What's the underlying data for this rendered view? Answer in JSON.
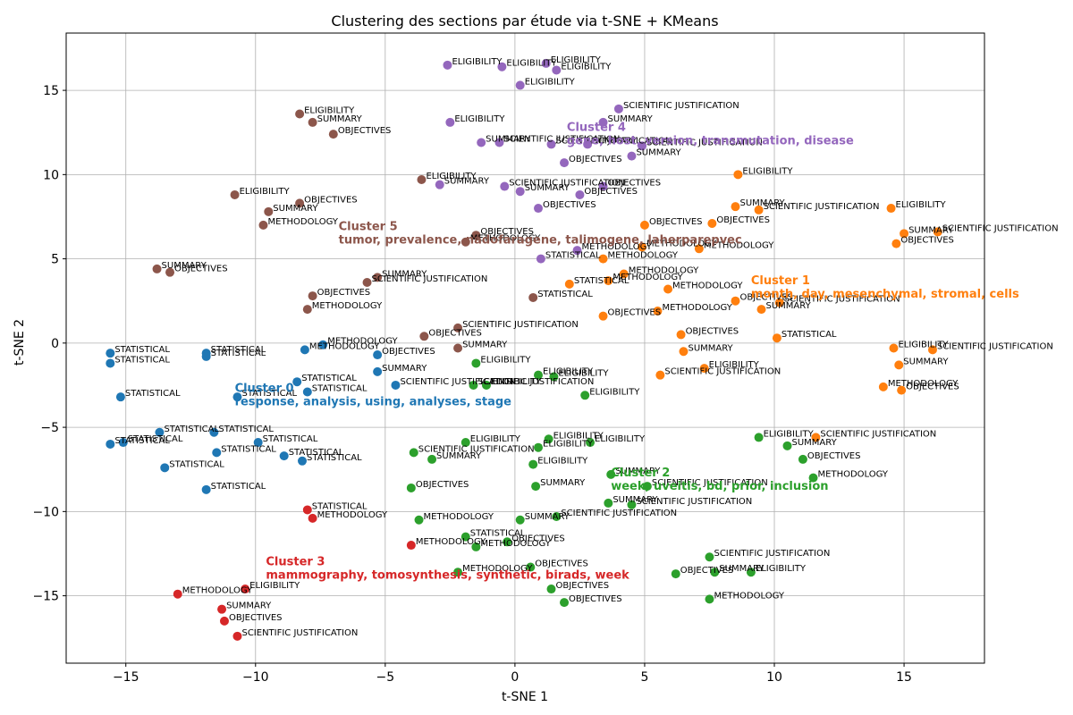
{
  "chart_data": {
    "type": "scatter",
    "title": "Clustering des sections par étude via t-SNE + KMeans",
    "xlabel": "t-SNE 1",
    "ylabel": "t-SNE 2",
    "xlim": [
      -17.3,
      18.1
    ],
    "ylim": [
      -19.0,
      18.4
    ],
    "xticks": [
      -15,
      -10,
      -5,
      0,
      5,
      10,
      15
    ],
    "yticks": [
      -15,
      -10,
      -5,
      0,
      5,
      10,
      15
    ],
    "grid": true,
    "colors": [
      "#1f77b4",
      "#ff7f0e",
      "#2ca02c",
      "#d62728",
      "#9467bd",
      "#8c564b"
    ],
    "clusters": [
      {
        "id": 0,
        "title": "Cluster 0",
        "keywords": "response, analysis, using, analyses, stage",
        "label_x": -10.8,
        "label_y": -2.9
      },
      {
        "id": 1,
        "title": "Cluster 1",
        "keywords": "month, day, mesenchymal, stromal, cells",
        "label_x": 9.1,
        "label_y": 3.5
      },
      {
        "id": 2,
        "title": "Cluster 2",
        "keywords": "week, uveitis, bd, prior, inclusion",
        "label_x": 3.7,
        "label_y": -7.9
      },
      {
        "id": 3,
        "title": "Cluster 3",
        "keywords": "mammography, tomosynthesis, synthetic, birads, week",
        "label_x": -9.6,
        "label_y": -13.2
      },
      {
        "id": 4,
        "title": "Cluster 4",
        "keywords": "gene, host, version, transmutation, disease",
        "label_x": 2.0,
        "label_y": 12.6
      },
      {
        "id": 5,
        "title": "Cluster 5",
        "keywords": "tumor, prevalence, nadofaragene, talimogene, laherparepvec",
        "label_x": -6.8,
        "label_y": 6.7
      }
    ],
    "points": [
      {
        "x": -15.6,
        "y": -0.6,
        "c": 0,
        "label": "STATISTICAL"
      },
      {
        "x": -15.6,
        "y": -1.2,
        "c": 0,
        "label": "STATISTICAL"
      },
      {
        "x": -11.9,
        "y": -0.6,
        "c": 0,
        "label": "STATISTICAL"
      },
      {
        "x": -11.9,
        "y": -0.8,
        "c": 0,
        "label": "STATISTICAL"
      },
      {
        "x": -15.2,
        "y": -3.2,
        "c": 0,
        "label": "STATISTICAL"
      },
      {
        "x": -10.7,
        "y": -3.2,
        "c": 0,
        "label": "STATISTICAL"
      },
      {
        "x": -13.7,
        "y": -5.3,
        "c": 0,
        "label": "STATISTICAL"
      },
      {
        "x": -11.6,
        "y": -5.3,
        "c": 0,
        "label": "STATISTICAL"
      },
      {
        "x": -15.6,
        "y": -6.0,
        "c": 0,
        "label": "STATISTICAL"
      },
      {
        "x": -15.1,
        "y": -5.9,
        "c": 0,
        "label": "STATISTICAL"
      },
      {
        "x": -9.9,
        "y": -5.9,
        "c": 0,
        "label": "STATISTICAL"
      },
      {
        "x": -11.5,
        "y": -6.5,
        "c": 0,
        "label": "STATISTICAL"
      },
      {
        "x": -13.5,
        "y": -7.4,
        "c": 0,
        "label": "STATISTICAL"
      },
      {
        "x": -8.9,
        "y": -6.7,
        "c": 0,
        "label": "STATISTICAL"
      },
      {
        "x": -8.2,
        "y": -7.0,
        "c": 0,
        "label": "STATISTICAL"
      },
      {
        "x": -11.9,
        "y": -8.7,
        "c": 0,
        "label": "STATISTICAL"
      },
      {
        "x": -8.4,
        "y": -2.3,
        "c": 0,
        "label": "STATISTICAL"
      },
      {
        "x": -8.0,
        "y": -2.9,
        "c": 0,
        "label": "STATISTICAL"
      },
      {
        "x": -8.1,
        "y": -0.4,
        "c": 0,
        "label": "METHODOLOGY"
      },
      {
        "x": -7.4,
        "y": -0.1,
        "c": 0,
        "label": "METHODOLOGY"
      },
      {
        "x": -5.3,
        "y": -0.7,
        "c": 0,
        "label": "OBJECTIVES"
      },
      {
        "x": -5.3,
        "y": -1.7,
        "c": 0,
        "label": "SUMMARY"
      },
      {
        "x": -4.6,
        "y": -2.5,
        "c": 0,
        "label": "SCIENTIFIC JUSTIFICATION"
      },
      {
        "x": 8.6,
        "y": 10.0,
        "c": 1,
        "label": "ELIGIBILITY"
      },
      {
        "x": 8.5,
        "y": 8.1,
        "c": 1,
        "label": "SUMMARY"
      },
      {
        "x": 9.4,
        "y": 7.9,
        "c": 1,
        "label": "SCIENTIFIC JUSTIFICATION"
      },
      {
        "x": 14.5,
        "y": 8.0,
        "c": 1,
        "label": "ELIGIBILITY"
      },
      {
        "x": 15.0,
        "y": 6.5,
        "c": 1,
        "label": "SUMMARY"
      },
      {
        "x": 16.3,
        "y": 6.6,
        "c": 1,
        "label": "SCIENTIFIC JUSTIFICATION"
      },
      {
        "x": 14.7,
        "y": 5.9,
        "c": 1,
        "label": "OBJECTIVES"
      },
      {
        "x": 5.0,
        "y": 7.0,
        "c": 1,
        "label": "OBJECTIVES"
      },
      {
        "x": 7.6,
        "y": 7.1,
        "c": 1,
        "label": "OBJECTIVES"
      },
      {
        "x": 4.9,
        "y": 5.7,
        "c": 1,
        "label": "METHODOLOGY"
      },
      {
        "x": 7.1,
        "y": 5.6,
        "c": 1,
        "label": "METHODOLOGY"
      },
      {
        "x": 3.4,
        "y": 5.0,
        "c": 1,
        "label": "METHODOLOGY"
      },
      {
        "x": 4.2,
        "y": 4.1,
        "c": 1,
        "label": "METHODOLOGY"
      },
      {
        "x": 3.6,
        "y": 3.7,
        "c": 1,
        "label": "METHODOLOGY"
      },
      {
        "x": 2.1,
        "y": 3.5,
        "c": 1,
        "label": "STATISTICAL"
      },
      {
        "x": 5.9,
        "y": 3.2,
        "c": 1,
        "label": "METHODOLOGY"
      },
      {
        "x": 8.5,
        "y": 2.5,
        "c": 1,
        "label": "OBJECTIVES"
      },
      {
        "x": 10.2,
        "y": 2.4,
        "c": 1,
        "label": "SCIENTIFIC JUSTIFICATION"
      },
      {
        "x": 9.5,
        "y": 2.0,
        "c": 1,
        "label": "SUMMARY"
      },
      {
        "x": 5.5,
        "y": 1.9,
        "c": 1,
        "label": "METHODOLOGY"
      },
      {
        "x": 3.4,
        "y": 1.6,
        "c": 1,
        "label": "OBJECTIVES"
      },
      {
        "x": 10.1,
        "y": 0.3,
        "c": 1,
        "label": "STATISTICAL"
      },
      {
        "x": 6.4,
        "y": 0.5,
        "c": 1,
        "label": "OBJECTIVES"
      },
      {
        "x": 6.5,
        "y": -0.5,
        "c": 1,
        "label": "SUMMARY"
      },
      {
        "x": 5.6,
        "y": -1.9,
        "c": 1,
        "label": "SCIENTIFIC JUSTIFICATION"
      },
      {
        "x": 7.3,
        "y": -1.5,
        "c": 1,
        "label": "ELIGIBILITY"
      },
      {
        "x": 14.6,
        "y": -0.3,
        "c": 1,
        "label": "ELIGIBILITY"
      },
      {
        "x": 16.1,
        "y": -0.4,
        "c": 1,
        "label": "SCIENTIFIC JUSTIFICATION"
      },
      {
        "x": 14.8,
        "y": -1.3,
        "c": 1,
        "label": "SUMMARY"
      },
      {
        "x": 14.2,
        "y": -2.6,
        "c": 1,
        "label": "METHODOLOGY"
      },
      {
        "x": 14.9,
        "y": -2.8,
        "c": 1,
        "label": "OBJECTIVES"
      },
      {
        "x": 11.6,
        "y": -5.6,
        "c": 1,
        "label": "SCIENTIFIC JUSTIFICATION"
      },
      {
        "x": -1.5,
        "y": -1.2,
        "c": 2,
        "label": "ELIGIBILITY"
      },
      {
        "x": 0.9,
        "y": -1.9,
        "c": 2,
        "label": "ELIGIBILITY"
      },
      {
        "x": 1.5,
        "y": -2.0,
        "c": 2,
        "label": "ELIGIBILITY"
      },
      {
        "x": -1.6,
        "y": -2.5,
        "c": 2,
        "label": "SCIENTIFIC JUSTIFICATION"
      },
      {
        "x": -1.1,
        "y": -2.5,
        "c": 2,
        "label": "ELIGIBILITY"
      },
      {
        "x": 2.7,
        "y": -3.1,
        "c": 2,
        "label": "ELIGIBILITY"
      },
      {
        "x": -1.9,
        "y": -5.9,
        "c": 2,
        "label": "ELIGIBILITY"
      },
      {
        "x": 1.3,
        "y": -5.7,
        "c": 2,
        "label": "ELIGIBILITY"
      },
      {
        "x": 2.9,
        "y": -5.9,
        "c": 2,
        "label": "ELIGIBILITY"
      },
      {
        "x": 0.9,
        "y": -6.2,
        "c": 2,
        "label": "ELIGIBILITY"
      },
      {
        "x": -3.9,
        "y": -6.5,
        "c": 2,
        "label": "SCIENTIFIC JUSTIFICATION"
      },
      {
        "x": -3.2,
        "y": -6.9,
        "c": 2,
        "label": "SUMMARY"
      },
      {
        "x": 0.7,
        "y": -7.2,
        "c": 2,
        "label": "ELIGIBILITY"
      },
      {
        "x": 3.7,
        "y": -7.8,
        "c": 2,
        "label": "SUMMARY"
      },
      {
        "x": 5.1,
        "y": -8.5,
        "c": 2,
        "label": "SCIENTIFIC JUSTIFICATION"
      },
      {
        "x": -4.0,
        "y": -8.6,
        "c": 2,
        "label": "OBJECTIVES"
      },
      {
        "x": 0.8,
        "y": -8.5,
        "c": 2,
        "label": "SUMMARY"
      },
      {
        "x": 3.6,
        "y": -9.5,
        "c": 2,
        "label": "SUMMARY"
      },
      {
        "x": 4.5,
        "y": -9.6,
        "c": 2,
        "label": "SCIENTIFIC JUSTIFICATION"
      },
      {
        "x": -3.7,
        "y": -10.5,
        "c": 2,
        "label": "METHODOLOGY"
      },
      {
        "x": 0.2,
        "y": -10.5,
        "c": 2,
        "label": "SUMMARY"
      },
      {
        "x": 1.6,
        "y": -10.3,
        "c": 2,
        "label": "SCIENTIFIC JUSTIFICATION"
      },
      {
        "x": -1.9,
        "y": -11.5,
        "c": 2,
        "label": "STATISTICAL"
      },
      {
        "x": -1.5,
        "y": -12.1,
        "c": 2,
        "label": "METHODOLOGY"
      },
      {
        "x": -0.3,
        "y": -11.8,
        "c": 2,
        "label": "OBJECTIVES"
      },
      {
        "x": -2.2,
        "y": -13.6,
        "c": 2,
        "label": "METHODOLOGY"
      },
      {
        "x": 0.6,
        "y": -13.3,
        "c": 2,
        "label": "OBJECTIVES"
      },
      {
        "x": 1.4,
        "y": -14.6,
        "c": 2,
        "label": "OBJECTIVES"
      },
      {
        "x": 1.9,
        "y": -15.4,
        "c": 2,
        "label": "OBJECTIVES"
      },
      {
        "x": 7.5,
        "y": -12.7,
        "c": 2,
        "label": "SCIENTIFIC JUSTIFICATION"
      },
      {
        "x": 6.2,
        "y": -13.7,
        "c": 2,
        "label": "OBJECTIVES"
      },
      {
        "x": 7.7,
        "y": -13.6,
        "c": 2,
        "label": "SUMMARY"
      },
      {
        "x": 9.1,
        "y": -13.6,
        "c": 2,
        "label": "ELIGIBILITY"
      },
      {
        "x": 7.5,
        "y": -15.2,
        "c": 2,
        "label": "METHODOLOGY"
      },
      {
        "x": 9.4,
        "y": -5.6,
        "c": 2,
        "label": "ELIGIBILITY"
      },
      {
        "x": 10.5,
        "y": -6.1,
        "c": 2,
        "label": "SUMMARY"
      },
      {
        "x": 11.1,
        "y": -6.9,
        "c": 2,
        "label": "OBJECTIVES"
      },
      {
        "x": 11.5,
        "y": -8.0,
        "c": 2,
        "label": "METHODOLOGY"
      },
      {
        "x": -8.0,
        "y": -9.9,
        "c": 3,
        "label": "STATISTICAL"
      },
      {
        "x": -7.8,
        "y": -10.4,
        "c": 3,
        "label": "METHODOLOGY"
      },
      {
        "x": -4.0,
        "y": -12.0,
        "c": 3,
        "label": "METHODOLOGY"
      },
      {
        "x": -13.0,
        "y": -14.9,
        "c": 3,
        "label": "METHODOLOGY"
      },
      {
        "x": -10.4,
        "y": -14.6,
        "c": 3,
        "label": "ELIGIBILITY"
      },
      {
        "x": -11.3,
        "y": -15.8,
        "c": 3,
        "label": "SUMMARY"
      },
      {
        "x": -11.2,
        "y": -16.5,
        "c": 3,
        "label": "OBJECTIVES"
      },
      {
        "x": -10.7,
        "y": -17.4,
        "c": 3,
        "label": "SCIENTIFIC JUSTIFICATION"
      },
      {
        "x": -2.6,
        "y": 16.5,
        "c": 4,
        "label": "ELIGIBILITY"
      },
      {
        "x": -0.5,
        "y": 16.4,
        "c": 4,
        "label": "ELIGIBILITY"
      },
      {
        "x": 1.2,
        "y": 16.6,
        "c": 4,
        "label": "ELIGIBILITY"
      },
      {
        "x": 1.6,
        "y": 16.2,
        "c": 4,
        "label": "ELIGIBILITY"
      },
      {
        "x": 0.2,
        "y": 15.3,
        "c": 4,
        "label": "ELIGIBILITY"
      },
      {
        "x": 4.0,
        "y": 13.9,
        "c": 4,
        "label": "SCIENTIFIC JUSTIFICATION"
      },
      {
        "x": -2.5,
        "y": 13.1,
        "c": 4,
        "label": "ELIGIBILITY"
      },
      {
        "x": 3.4,
        "y": 13.1,
        "c": 4,
        "label": "SUMMARY"
      },
      {
        "x": -1.3,
        "y": 11.9,
        "c": 4,
        "label": "SUMMARY"
      },
      {
        "x": -0.6,
        "y": 11.9,
        "c": 4,
        "label": "SCIENTIFIC JUSTIFICATION"
      },
      {
        "x": 1.4,
        "y": 11.8,
        "c": 4,
        "label": "SCIENTIFIC JUSTIFICATION"
      },
      {
        "x": 2.8,
        "y": 11.8,
        "c": 4,
        "label": "SUMMARY"
      },
      {
        "x": 4.9,
        "y": 11.7,
        "c": 4,
        "label": "SCIENTIFIC JUSTIFICATION"
      },
      {
        "x": 4.5,
        "y": 11.1,
        "c": 4,
        "label": "SUMMARY"
      },
      {
        "x": 1.9,
        "y": 10.7,
        "c": 4,
        "label": "OBJECTIVES"
      },
      {
        "x": -2.9,
        "y": 9.4,
        "c": 4,
        "label": "SUMMARY"
      },
      {
        "x": -0.4,
        "y": 9.3,
        "c": 4,
        "label": "SCIENTIFIC JUSTIFICATION"
      },
      {
        "x": 0.2,
        "y": 9.0,
        "c": 4,
        "label": "SUMMARY"
      },
      {
        "x": 3.4,
        "y": 9.3,
        "c": 4,
        "label": "OBJECTIVES"
      },
      {
        "x": 2.5,
        "y": 8.8,
        "c": 4,
        "label": "OBJECTIVES"
      },
      {
        "x": 0.9,
        "y": 8.0,
        "c": 4,
        "label": "OBJECTIVES"
      },
      {
        "x": 2.4,
        "y": 5.5,
        "c": 4,
        "label": "METHODOLOGY"
      },
      {
        "x": 1.0,
        "y": 5.0,
        "c": 4,
        "label": "STATISTICAL"
      },
      {
        "x": -8.3,
        "y": 13.6,
        "c": 5,
        "label": "ELIGIBILITY"
      },
      {
        "x": -7.8,
        "y": 13.1,
        "c": 5,
        "label": "SUMMARY"
      },
      {
        "x": -7.0,
        "y": 12.4,
        "c": 5,
        "label": "OBJECTIVES"
      },
      {
        "x": -10.8,
        "y": 8.8,
        "c": 5,
        "label": "ELIGIBILITY"
      },
      {
        "x": -8.3,
        "y": 8.3,
        "c": 5,
        "label": "OBJECTIVES"
      },
      {
        "x": -9.5,
        "y": 7.8,
        "c": 5,
        "label": "SUMMARY"
      },
      {
        "x": -9.7,
        "y": 7.0,
        "c": 5,
        "label": "METHODOLOGY"
      },
      {
        "x": -3.6,
        "y": 9.7,
        "c": 5,
        "label": "ELIGIBILITY"
      },
      {
        "x": -1.5,
        "y": 6.4,
        "c": 5,
        "label": "OBJECTIVES"
      },
      {
        "x": -1.9,
        "y": 6.0,
        "c": 5,
        "label": "METHODOLOGY"
      },
      {
        "x": -13.8,
        "y": 4.4,
        "c": 5,
        "label": "SUMMARY"
      },
      {
        "x": -13.3,
        "y": 4.2,
        "c": 5,
        "label": "OBJECTIVES"
      },
      {
        "x": -5.3,
        "y": 3.9,
        "c": 5,
        "label": "SUMMARY"
      },
      {
        "x": -5.7,
        "y": 3.6,
        "c": 5,
        "label": "SCIENTIFIC JUSTIFICATION"
      },
      {
        "x": -7.8,
        "y": 2.8,
        "c": 5,
        "label": "OBJECTIVES"
      },
      {
        "x": -8.0,
        "y": 2.0,
        "c": 5,
        "label": "METHODOLOGY"
      },
      {
        "x": 0.7,
        "y": 2.7,
        "c": 5,
        "label": "STATISTICAL"
      },
      {
        "x": -2.2,
        "y": 0.9,
        "c": 5,
        "label": "SCIENTIFIC JUSTIFICATION"
      },
      {
        "x": -3.5,
        "y": 0.4,
        "c": 5,
        "label": "OBJECTIVES"
      },
      {
        "x": -2.2,
        "y": -0.3,
        "c": 5,
        "label": "SUMMARY"
      }
    ]
  }
}
